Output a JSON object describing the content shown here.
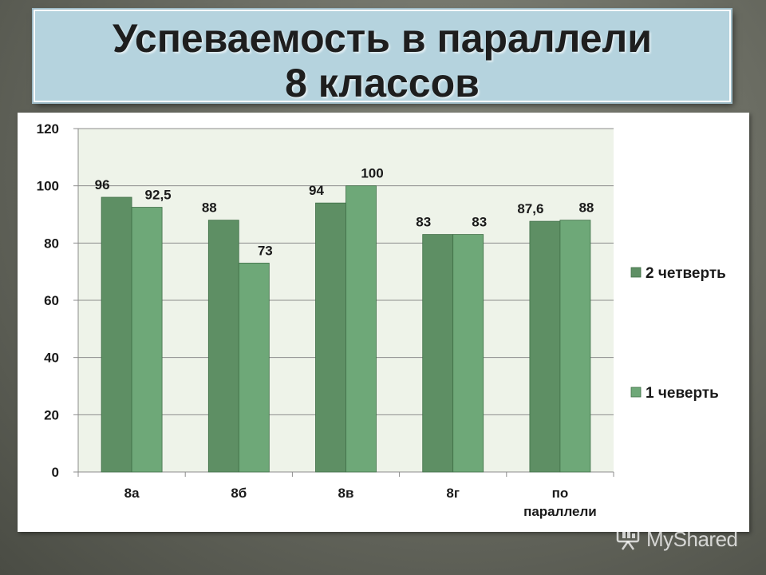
{
  "slide": {
    "title_line1": "Успеваемость в параллели",
    "title_line2": "8 классов",
    "watermark": "MyShared"
  },
  "chart_data": {
    "type": "bar",
    "categories": [
      "8а",
      "8б",
      "8в",
      "8г",
      "по параллели"
    ],
    "series": [
      {
        "name": "2 четверть",
        "values": [
          96,
          88,
          94,
          83,
          87.6
        ],
        "labels": [
          "96",
          "88",
          "94",
          "83",
          "87,6"
        ],
        "color": "#5e8f64"
      },
      {
        "name": "1 чеверть",
        "values": [
          92.5,
          73,
          100,
          83,
          88
        ],
        "labels": [
          "92,5",
          "73",
          "100",
          "83",
          "88"
        ],
        "color": "#6ea878"
      }
    ],
    "yticks": [
      0,
      20,
      40,
      60,
      80,
      100,
      120
    ],
    "ylim": [
      0,
      120
    ],
    "grid": true,
    "legend_position": "right",
    "plot_background": "#eef3e9"
  }
}
